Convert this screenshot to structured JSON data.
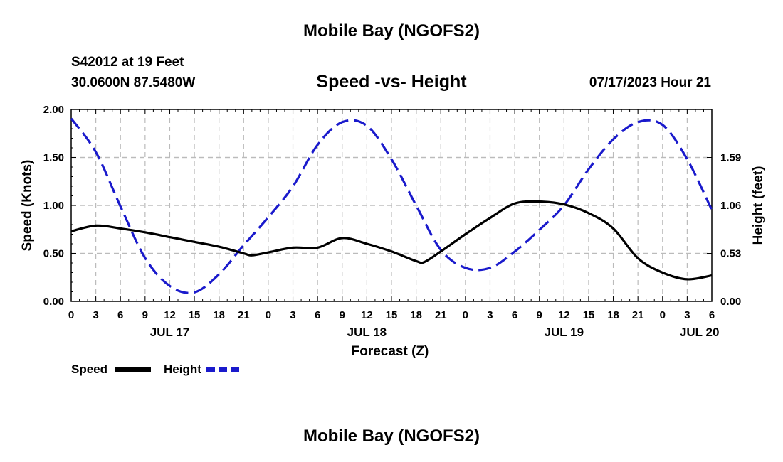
{
  "page": {
    "title_top": "Mobile Bay (NGOFS2)",
    "title_bottom": "Mobile Bay (NGOFS2)",
    "station": "S42012 at 19 Feet",
    "coords": "30.0600N  87.5480W",
    "datetime": "07/17/2023 Hour 21"
  },
  "colors": {
    "speed": "#000000",
    "height": "#1a1acc",
    "grid": "#bbbbbb"
  },
  "chart_data": {
    "type": "line",
    "title": "Speed -vs- Height",
    "xlabel": "Forecast (Z)",
    "ylabel_left": "Speed (Knots)",
    "ylabel_right": "Height (feet)",
    "xlim": [
      0,
      78
    ],
    "ylim_left": [
      0,
      2.0
    ],
    "ylim_right": [
      0,
      2.12
    ],
    "x_ticks": [
      0,
      3,
      6,
      9,
      12,
      15,
      18,
      21,
      24,
      27,
      30,
      33,
      36,
      39,
      42,
      45,
      48,
      51,
      54,
      57,
      60,
      63,
      66,
      69,
      72,
      75,
      78
    ],
    "x_tick_labels": [
      "0",
      "3",
      "6",
      "9",
      "12",
      "15",
      "18",
      "21",
      "0",
      "3",
      "6",
      "9",
      "12",
      "15",
      "18",
      "21",
      "0",
      "3",
      "6",
      "9",
      "12",
      "15",
      "18",
      "21",
      "0",
      "3",
      "6"
    ],
    "day_labels": [
      {
        "x": 12,
        "label": "JUL 17"
      },
      {
        "x": 36,
        "label": "JUL 18"
      },
      {
        "x": 60,
        "label": "JUL 19"
      },
      {
        "x": 76.5,
        "label": "JUL 20"
      }
    ],
    "left_ticks": [
      0,
      0.5,
      1.0,
      1.5,
      2.0
    ],
    "left_tick_labels": [
      "0.00",
      "0.50",
      "1.00",
      "1.50",
      "2.00"
    ],
    "right_ticks": [
      0,
      0.53,
      1.06,
      1.59
    ],
    "right_tick_labels": [
      "0.00",
      "0.53",
      "1.06",
      "1.59"
    ],
    "grid": true,
    "legend": [
      {
        "name": "Speed",
        "style": "solid"
      },
      {
        "name": "Height",
        "style": "dashed"
      }
    ],
    "series": [
      {
        "name": "Speed",
        "axis": "left",
        "x": [
          0,
          3,
          6,
          9,
          12,
          15,
          18,
          21,
          22,
          24,
          27,
          30,
          33,
          36,
          39,
          42,
          43,
          45,
          48,
          51,
          54,
          57,
          60,
          63,
          66,
          69,
          72,
          75,
          78
        ],
        "y": [
          0.73,
          0.79,
          0.76,
          0.72,
          0.67,
          0.62,
          0.57,
          0.5,
          0.48,
          0.51,
          0.56,
          0.56,
          0.66,
          0.6,
          0.52,
          0.42,
          0.41,
          0.52,
          0.7,
          0.87,
          1.02,
          1.04,
          1.01,
          0.92,
          0.76,
          0.45,
          0.3,
          0.23,
          0.27
        ]
      },
      {
        "name": "Height",
        "axis": "right",
        "x": [
          0,
          3,
          6,
          9,
          12,
          15,
          18,
          21,
          24,
          27,
          30,
          33,
          36,
          39,
          42,
          45,
          48,
          51,
          54,
          57,
          60,
          63,
          66,
          69,
          72,
          75,
          78
        ],
        "y": [
          2.02,
          1.65,
          1.05,
          0.48,
          0.17,
          0.1,
          0.3,
          0.62,
          0.93,
          1.27,
          1.73,
          1.98,
          1.94,
          1.57,
          1.06,
          0.57,
          0.37,
          0.37,
          0.55,
          0.79,
          1.06,
          1.46,
          1.79,
          1.98,
          1.95,
          1.57,
          1.01
        ]
      }
    ]
  }
}
